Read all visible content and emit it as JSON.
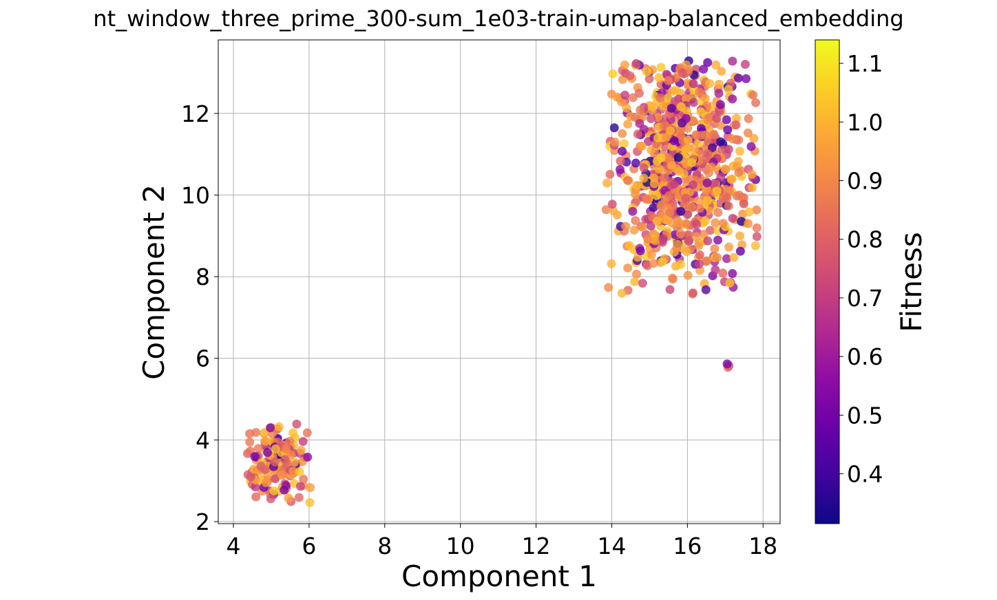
{
  "chart_data": {
    "type": "scatter",
    "title": "nt_window_three_prime_300-sum_1e03-train-umap-balanced_embedding",
    "xlabel": "Component 1",
    "ylabel": "Component 2",
    "xlim": [
      3.6,
      18.45
    ],
    "ylim": [
      1.95,
      13.8
    ],
    "x_ticks": [
      4,
      6,
      8,
      10,
      12,
      14,
      16,
      18
    ],
    "y_ticks": [
      2,
      4,
      6,
      8,
      10,
      12
    ],
    "grid": true,
    "colormap": "plasma",
    "colorbar": {
      "label": "Fitness",
      "range": [
        0.315,
        1.14
      ],
      "ticks": [
        0.4,
        0.5,
        0.6,
        0.7,
        0.8,
        0.9,
        1.0,
        1.1
      ],
      "tick_labels": [
        "0.4",
        "0.5",
        "0.6",
        "0.7",
        "0.8",
        "0.9",
        "1.0",
        "1.1"
      ]
    },
    "clusters": [
      {
        "name": "",
        "center": [
          5.2,
          3.35
        ],
        "spread": [
          0.5,
          0.55
        ],
        "count": 160,
        "bounds": [
          [
            4.35,
            6.05
          ],
          [
            2.45,
            4.45
          ]
        ]
      },
      {
        "name": "",
        "center": [
          15.8,
          10.6
        ],
        "spread": [
          0.95,
          1.55
        ],
        "count": 820,
        "bounds": [
          [
            13.85,
            17.85
          ],
          [
            7.55,
            13.3
          ]
        ]
      },
      {
        "name": "",
        "center": [
          17.07,
          5.8
        ],
        "spread": [
          0.04,
          0.04
        ],
        "count": 3,
        "bounds": [
          [
            17.0,
            17.15
          ],
          [
            5.72,
            5.88
          ]
        ]
      }
    ],
    "marker": {
      "alpha": 0.8
    }
  }
}
